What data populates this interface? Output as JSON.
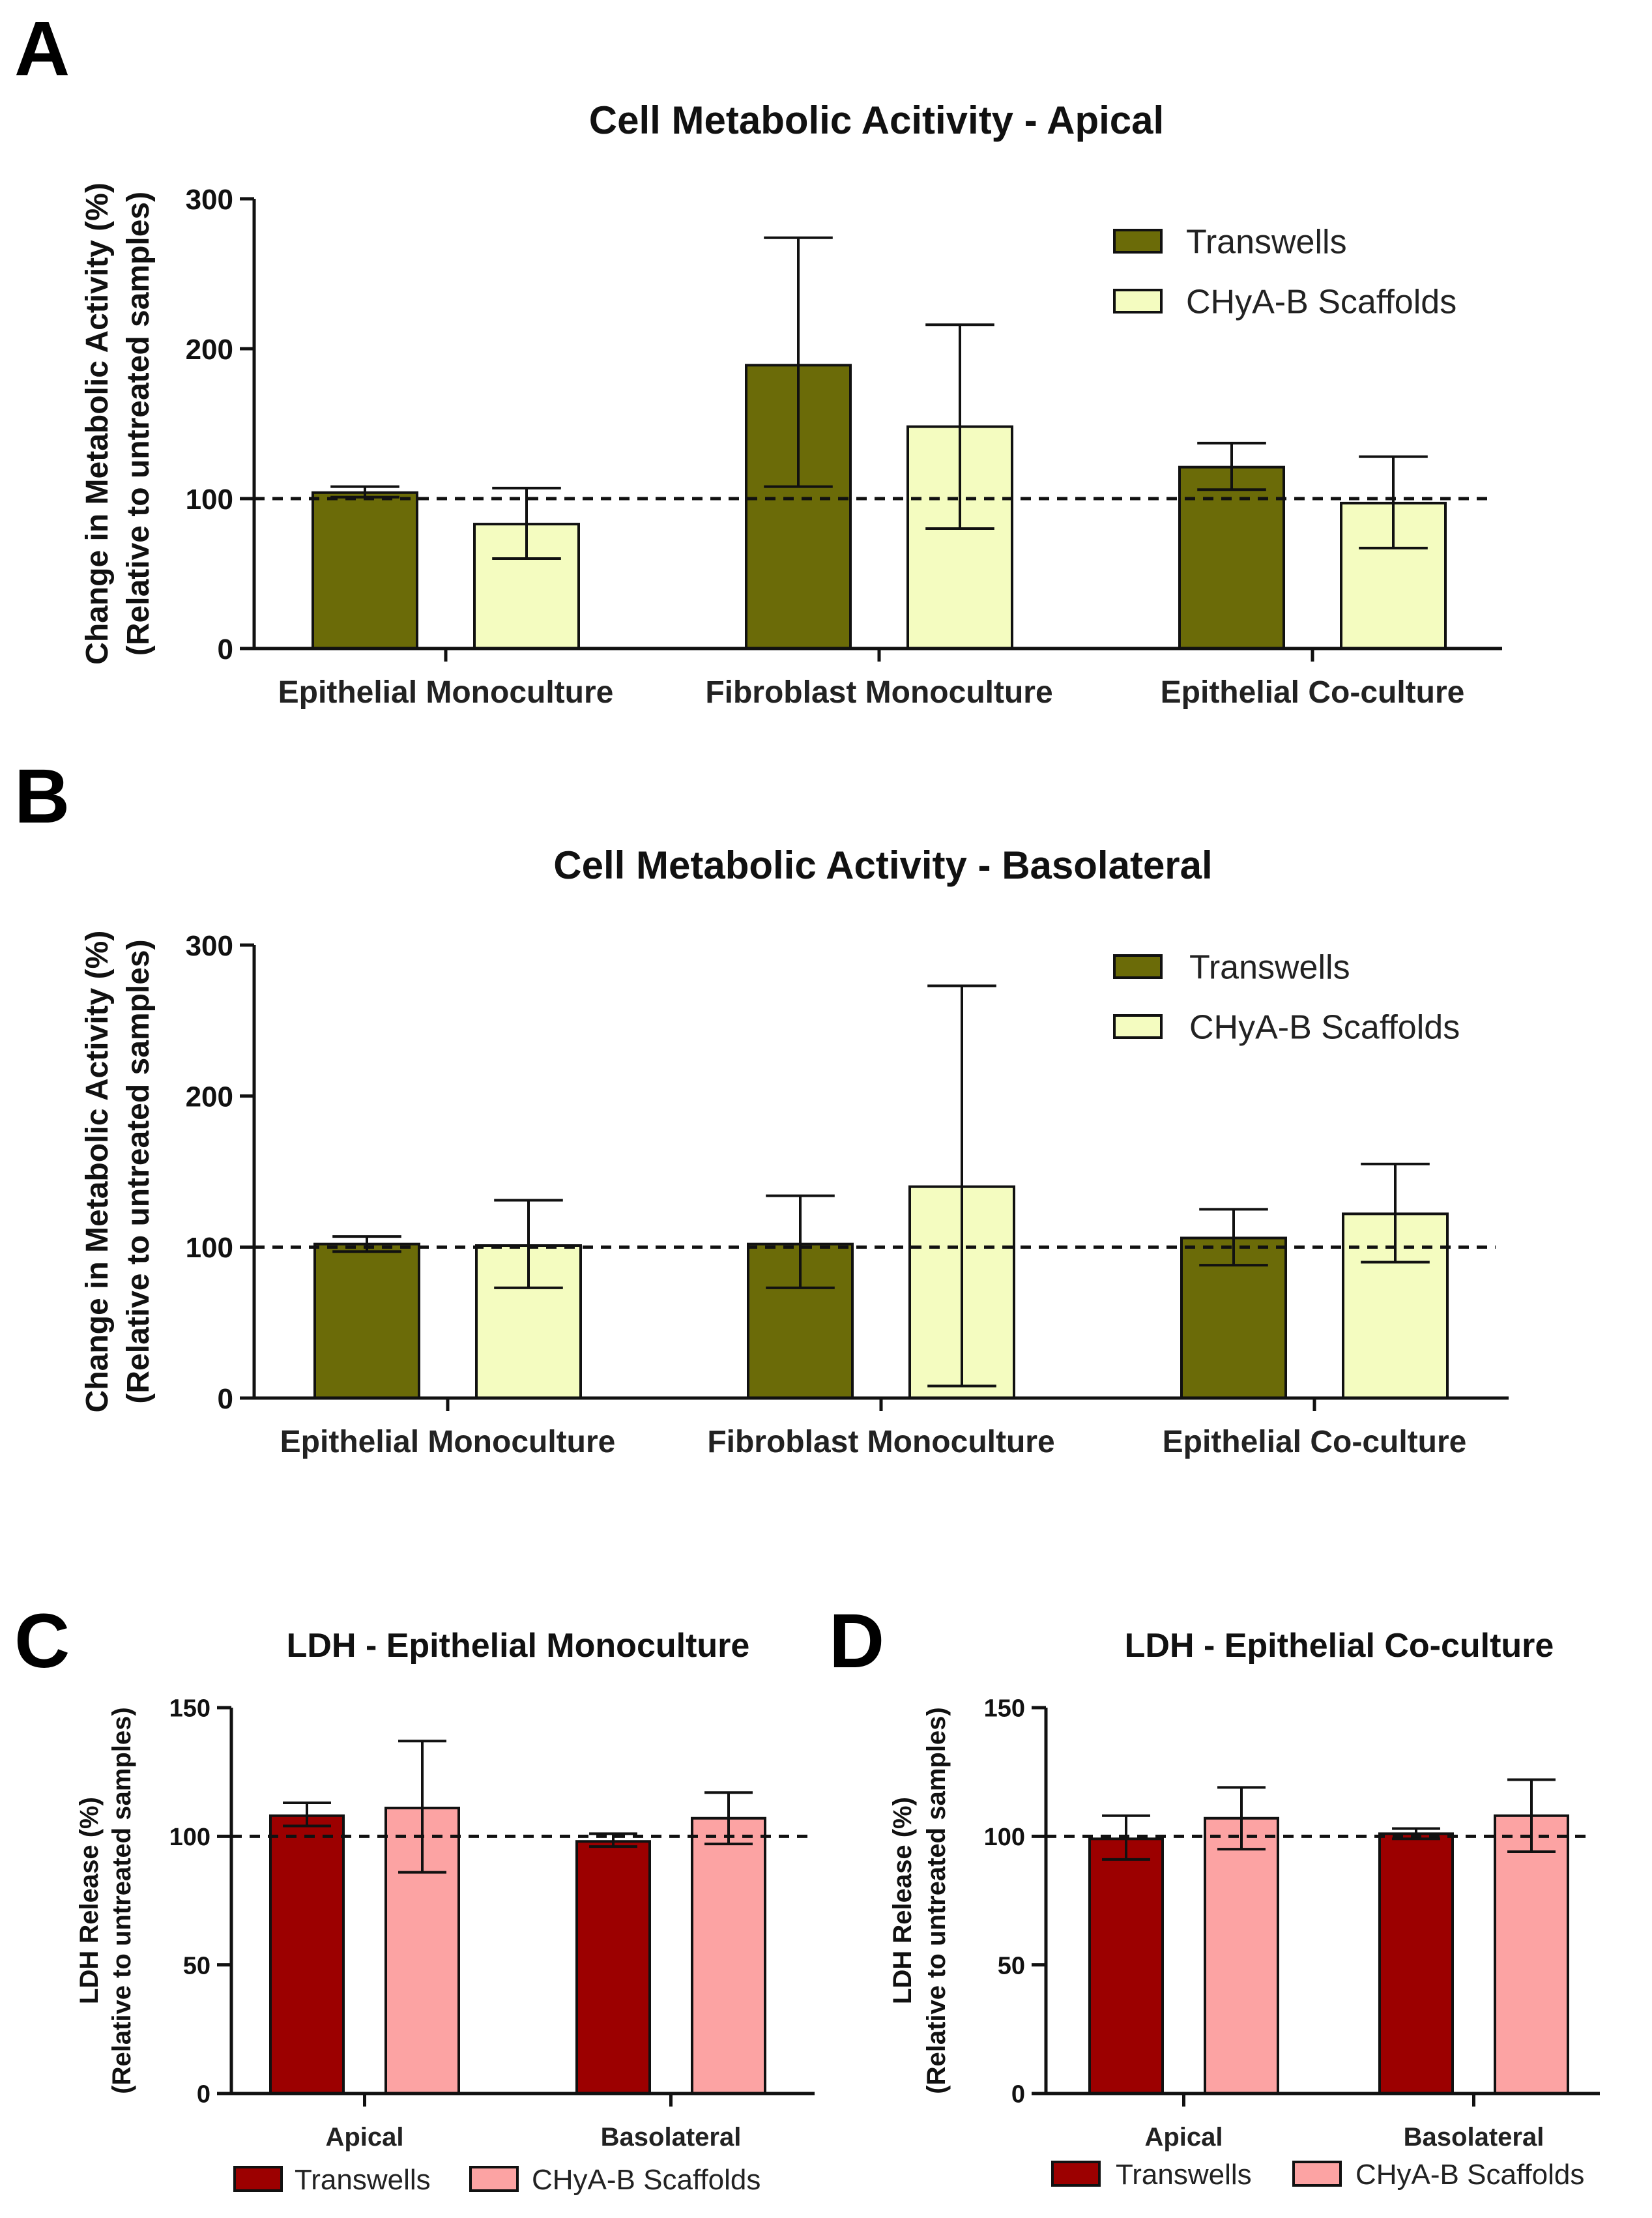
{
  "figure": {
    "colors": {
      "transwells_ab": "#6b6b08",
      "scaffolds_ab": "#f4fcc0",
      "transwells_cd": "#9c0000",
      "scaffolds_cd": "#fca3a3",
      "axis": "#111111"
    }
  },
  "chart_data": [
    {
      "panel": "A",
      "type": "bar",
      "title": "Cell  Metabolic  Acitivity - Apical",
      "ylabel_line1": "Change in Metabolic Activity (%)",
      "ylabel_line2": "(Relative to untreated samples)",
      "xlabel": "",
      "ylim": [
        0,
        300
      ],
      "yticks": [
        0,
        100,
        200,
        300
      ],
      "reference_line": 100,
      "categories": [
        "Epithelial Monoculture",
        "Fibroblast Monoculture",
        "Epithelial Co-culture"
      ],
      "series": [
        {
          "name": "Transwells",
          "values": [
            104,
            189,
            121
          ],
          "err_low": [
            101,
            108,
            106
          ],
          "err_high": [
            108,
            274,
            137
          ]
        },
        {
          "name": "CHyA-B Scaffolds",
          "values": [
            83,
            148,
            97
          ],
          "err_low": [
            60,
            80,
            67
          ],
          "err_high": [
            107,
            216,
            128
          ]
        }
      ],
      "legend_position": "top-right"
    },
    {
      "panel": "B",
      "type": "bar",
      "title": "Cell  Metabolic Activity - Basolateral",
      "ylabel_line1": "Change in Metabolic Activity (%)",
      "ylabel_line2": "(Relative to untreated samples)",
      "xlabel": "",
      "ylim": [
        0,
        300
      ],
      "yticks": [
        0,
        100,
        200,
        300
      ],
      "reference_line": 100,
      "categories": [
        "Epithelial Monoculture",
        "Fibroblast Monoculture",
        "Epithelial Co-culture"
      ],
      "series": [
        {
          "name": "Transwells",
          "values": [
            102,
            102,
            106
          ],
          "err_low": [
            97,
            73,
            88
          ],
          "err_high": [
            107,
            134,
            125
          ]
        },
        {
          "name": "CHyA-B Scaffolds",
          "values": [
            101,
            140,
            122
          ],
          "err_low": [
            73,
            8,
            90
          ],
          "err_high": [
            131,
            273,
            155
          ]
        }
      ],
      "legend_position": "top-right"
    },
    {
      "panel": "C",
      "type": "bar",
      "title": "LDH - Epithelial  Monoculture",
      "ylabel_line1": "LDH Release (%)",
      "ylabel_line2": "(Relative to untreated samples)",
      "xlabel": "",
      "ylim": [
        0,
        150
      ],
      "yticks": [
        0,
        50,
        100,
        150
      ],
      "reference_line": 100,
      "categories": [
        "Apical",
        "Basolateral"
      ],
      "series": [
        {
          "name": "Transwells",
          "values": [
            108,
            98
          ],
          "err_low": [
            104,
            96
          ],
          "err_high": [
            113,
            101
          ]
        },
        {
          "name": "CHyA-B Scaffolds",
          "values": [
            111,
            107
          ],
          "err_low": [
            86,
            97
          ],
          "err_high": [
            137,
            117
          ]
        }
      ],
      "legend_position": "bottom"
    },
    {
      "panel": "D",
      "type": "bar",
      "title": "LDH - Epithelial  Co-culture",
      "ylabel_line1": "LDH Release (%)",
      "ylabel_line2": "(Relative to untreated samples)",
      "xlabel": "",
      "ylim": [
        0,
        150
      ],
      "yticks": [
        0,
        50,
        100,
        150
      ],
      "reference_line": 100,
      "categories": [
        "Apical",
        "Basolateral"
      ],
      "series": [
        {
          "name": "Transwells",
          "values": [
            99,
            101
          ],
          "err_low": [
            91,
            99
          ],
          "err_high": [
            108,
            103
          ]
        },
        {
          "name": "CHyA-B Scaffolds",
          "values": [
            107,
            108
          ],
          "err_low": [
            95,
            94
          ],
          "err_high": [
            119,
            122
          ]
        }
      ],
      "legend_position": "bottom"
    }
  ]
}
